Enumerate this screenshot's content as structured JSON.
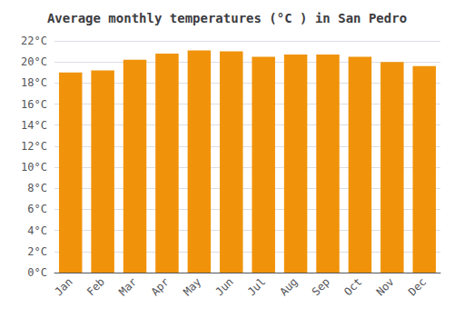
{
  "chart_data": {
    "type": "bar",
    "title": "Average monthly temperatures (°C ) in San Pedro",
    "categories": [
      "Jan",
      "Feb",
      "Mar",
      "Apr",
      "May",
      "Jun",
      "Jul",
      "Aug",
      "Sep",
      "Oct",
      "Nov",
      "Dec"
    ],
    "values": [
      19.0,
      19.2,
      20.2,
      20.8,
      21.1,
      21.0,
      20.5,
      20.7,
      20.7,
      20.5,
      20.0,
      19.6
    ],
    "color": "#F0930A",
    "ylim": [
      0,
      22
    ],
    "yticks": [
      {
        "value": 0,
        "label": "0°C"
      },
      {
        "value": 2,
        "label": "2°C"
      },
      {
        "value": 4,
        "label": "4°C"
      },
      {
        "value": 6,
        "label": "6°C"
      },
      {
        "value": 8,
        "label": "8°C"
      },
      {
        "value": 10,
        "label": "10°C"
      },
      {
        "value": 12,
        "label": "12°C"
      },
      {
        "value": 14,
        "label": "14°C"
      },
      {
        "value": 16,
        "label": "16°C"
      },
      {
        "value": 18,
        "label": "18°C"
      },
      {
        "value": 20,
        "label": "20°C"
      },
      {
        "value": 22,
        "label": "22°C"
      }
    ],
    "grid": true
  }
}
